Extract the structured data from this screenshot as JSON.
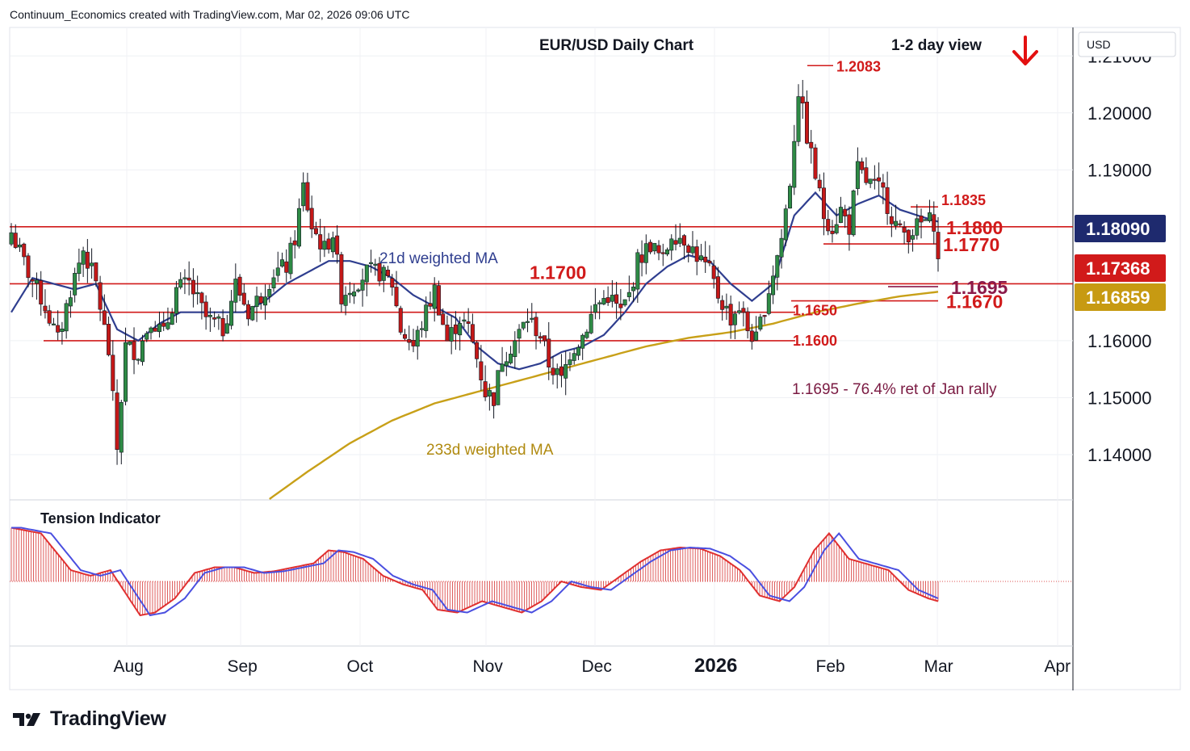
{
  "header": {
    "credit": "Continuum_Economics created with TradingView.com, Mar 02, 2026 09:06 UTC"
  },
  "brand": {
    "name": "TradingView"
  },
  "chart_data": {
    "type": "candlestick",
    "title": "EUR/USD Daily Chart",
    "view_label": "1-2 day view",
    "view_direction": "down",
    "currency": "USD",
    "y_range": [
      1.1322,
      1.215
    ],
    "y_ticks": [
      "1.21000",
      "1.20000",
      "1.19000",
      "1.16000",
      "1.15000",
      "1.14000"
    ],
    "x_ticks": [
      "Aug",
      "Sep",
      "Oct",
      "Nov",
      "Dec",
      "2026",
      "Feb",
      "Mar",
      "Apr"
    ],
    "price_badges": [
      {
        "label": "1.18090",
        "value": 1.1809,
        "color": "#1e2a6e",
        "text_color": "#ffffff"
      },
      {
        "label": "1.17368",
        "value": 1.17368,
        "color": "#d11a1a",
        "text_color": "#ffffff"
      },
      {
        "label": "1.16859",
        "value": 1.16859,
        "color": "#c79a12",
        "text_color": "#ffffff"
      }
    ],
    "levels": [
      {
        "label": "1.2083",
        "value": 1.2083,
        "span": "short",
        "size": "small"
      },
      {
        "label": "1.1835",
        "value": 1.1835,
        "span": "short",
        "size": "small"
      },
      {
        "label": "1.1800",
        "value": 1.18,
        "span": "full",
        "size": "large"
      },
      {
        "label": "1.1770",
        "value": 1.177,
        "span": "short",
        "size": "large"
      },
      {
        "label": "1.1700",
        "value": 1.17,
        "span": "full",
        "size": "large"
      },
      {
        "label": "1.1695",
        "value": 1.1695,
        "span": "short",
        "size": "large",
        "color": "#8b1a4a"
      },
      {
        "label": "1.1670",
        "value": 1.167,
        "span": "short",
        "size": "large"
      },
      {
        "label": "1.1650",
        "value": 1.165,
        "span": "full",
        "size": "small"
      },
      {
        "label": "1.1600",
        "value": 1.16,
        "span": "full",
        "size": "small"
      }
    ],
    "annotations": {
      "ma21": "21d weighted MA",
      "ma233": "233d weighted MA",
      "retracement": "1.1695 - 76.4% ret of Jan rally",
      "indicator": "Tension Indicator"
    },
    "series": [
      {
        "name": "EUR/USD",
        "close_points": [
          [
            0,
            1.179
          ],
          [
            4,
            1.172
          ],
          [
            8,
            1.166
          ],
          [
            11,
            1.16
          ],
          [
            14,
            1.169
          ],
          [
            17,
            1.176
          ],
          [
            20,
            1.17
          ],
          [
            23,
            1.158
          ],
          [
            25,
            1.141
          ],
          [
            27,
            1.159
          ],
          [
            30,
            1.158
          ],
          [
            33,
            1.164
          ],
          [
            36,
            1.161
          ],
          [
            39,
            1.169
          ],
          [
            42,
            1.17
          ],
          [
            46,
            1.164
          ],
          [
            50,
            1.162
          ],
          [
            53,
            1.17
          ],
          [
            56,
            1.165
          ],
          [
            59,
            1.168
          ],
          [
            62,
            1.172
          ],
          [
            65,
            1.173
          ],
          [
            67,
            1.178
          ],
          [
            69,
            1.187
          ],
          [
            71,
            1.18
          ],
          [
            74,
            1.176
          ],
          [
            76,
            1.179
          ],
          [
            78,
            1.168
          ],
          [
            81,
            1.17
          ],
          [
            84,
            1.172
          ],
          [
            87,
            1.172
          ],
          [
            90,
            1.17
          ],
          [
            92,
            1.162
          ],
          [
            95,
            1.159
          ],
          [
            98,
            1.165
          ],
          [
            100,
            1.169
          ],
          [
            103,
            1.16
          ],
          [
            106,
            1.164
          ],
          [
            108,
            1.162
          ],
          [
            110,
            1.157
          ],
          [
            112,
            1.151
          ],
          [
            114,
            1.15
          ],
          [
            116,
            1.157
          ],
          [
            119,
            1.16
          ],
          [
            122,
            1.164
          ],
          [
            125,
            1.161
          ],
          [
            127,
            1.156
          ],
          [
            130,
            1.153
          ],
          [
            132,
            1.158
          ],
          [
            135,
            1.161
          ],
          [
            138,
            1.166
          ],
          [
            141,
            1.168
          ],
          [
            144,
            1.165
          ],
          [
            146,
            1.168
          ],
          [
            148,
            1.174
          ],
          [
            151,
            1.177
          ],
          [
            154,
            1.174
          ],
          [
            156,
            1.179
          ],
          [
            159,
            1.178
          ],
          [
            162,
            1.175
          ],
          [
            165,
            1.172
          ],
          [
            167,
            1.168
          ],
          [
            170,
            1.164
          ],
          [
            172,
            1.166
          ],
          [
            174,
            1.162
          ],
          [
            176,
            1.16
          ],
          [
            178,
            1.166
          ],
          [
            180,
            1.172
          ],
          [
            182,
            1.178
          ],
          [
            184,
            1.188
          ],
          [
            186,
            1.204
          ],
          [
            188,
            1.196
          ],
          [
            190,
            1.189
          ],
          [
            192,
            1.182
          ],
          [
            194,
            1.18
          ],
          [
            196,
            1.183
          ],
          [
            198,
            1.18
          ],
          [
            200,
            1.19
          ],
          [
            202,
            1.188
          ],
          [
            204,
            1.187
          ],
          [
            206,
            1.186
          ],
          [
            208,
            1.182
          ],
          [
            210,
            1.179
          ],
          [
            212,
            1.179
          ],
          [
            214,
            1.18
          ],
          [
            216,
            1.181
          ],
          [
            218,
            1.1809
          ],
          [
            219,
            1.17368
          ]
        ]
      }
    ],
    "ma21_points": [
      [
        0,
        1.165
      ],
      [
        5,
        1.171
      ],
      [
        10,
        1.17
      ],
      [
        15,
        1.169
      ],
      [
        20,
        1.17
      ],
      [
        25,
        1.162
      ],
      [
        30,
        1.16
      ],
      [
        35,
        1.163
      ],
      [
        40,
        1.165
      ],
      [
        45,
        1.165
      ],
      [
        50,
        1.165
      ],
      [
        55,
        1.165
      ],
      [
        60,
        1.167
      ],
      [
        65,
        1.17
      ],
      [
        70,
        1.172
      ],
      [
        75,
        1.174
      ],
      [
        80,
        1.174
      ],
      [
        85,
        1.173
      ],
      [
        90,
        1.171
      ],
      [
        95,
        1.168
      ],
      [
        100,
        1.166
      ],
      [
        105,
        1.164
      ],
      [
        110,
        1.159
      ],
      [
        115,
        1.156
      ],
      [
        120,
        1.155
      ],
      [
        125,
        1.156
      ],
      [
        130,
        1.158
      ],
      [
        135,
        1.159
      ],
      [
        140,
        1.161
      ],
      [
        145,
        1.165
      ],
      [
        150,
        1.17
      ],
      [
        155,
        1.173
      ],
      [
        160,
        1.175
      ],
      [
        165,
        1.174
      ],
      [
        170,
        1.17
      ],
      [
        175,
        1.167
      ],
      [
        180,
        1.17
      ],
      [
        185,
        1.182
      ],
      [
        190,
        1.186
      ],
      [
        195,
        1.182
      ],
      [
        200,
        1.184
      ],
      [
        205,
        1.1855
      ],
      [
        210,
        1.183
      ],
      [
        215,
        1.1818
      ],
      [
        219,
        1.1809
      ]
    ],
    "ma233_points": [
      [
        61,
        1.1322
      ],
      [
        70,
        1.137
      ],
      [
        80,
        1.142
      ],
      [
        90,
        1.146
      ],
      [
        100,
        1.149
      ],
      [
        110,
        1.151
      ],
      [
        120,
        1.153
      ],
      [
        130,
        1.155
      ],
      [
        140,
        1.157
      ],
      [
        150,
        1.159
      ],
      [
        160,
        1.1605
      ],
      [
        170,
        1.1615
      ],
      [
        180,
        1.163
      ],
      [
        190,
        1.165
      ],
      [
        200,
        1.1665
      ],
      [
        210,
        1.1678
      ],
      [
        219,
        1.16859
      ]
    ],
    "tension": {
      "range": [
        -1,
        1
      ],
      "values": [
        [
          0,
          0.95
        ],
        [
          6,
          0.85
        ],
        [
          12,
          0.2
        ],
        [
          16,
          0.1
        ],
        [
          20,
          0.2
        ],
        [
          23,
          -0.2
        ],
        [
          26,
          -0.6
        ],
        [
          29,
          -0.55
        ],
        [
          33,
          -0.3
        ],
        [
          37,
          0.15
        ],
        [
          41,
          0.25
        ],
        [
          45,
          0.25
        ],
        [
          49,
          0.15
        ],
        [
          53,
          0.18
        ],
        [
          57,
          0.25
        ],
        [
          61,
          0.32
        ],
        [
          64,
          0.55
        ],
        [
          67,
          0.52
        ],
        [
          71,
          0.4
        ],
        [
          75,
          0.1
        ],
        [
          79,
          -0.05
        ],
        [
          83,
          -0.15
        ],
        [
          86,
          -0.5
        ],
        [
          90,
          -0.55
        ],
        [
          95,
          -0.35
        ],
        [
          99,
          -0.45
        ],
        [
          103,
          -0.55
        ],
        [
          107,
          -0.35
        ],
        [
          111,
          0.0
        ],
        [
          115,
          -0.1
        ],
        [
          119,
          -0.15
        ],
        [
          123,
          0.1
        ],
        [
          127,
          0.35
        ],
        [
          131,
          0.55
        ],
        [
          135,
          0.6
        ],
        [
          139,
          0.58
        ],
        [
          143,
          0.45
        ],
        [
          147,
          0.2
        ],
        [
          151,
          -0.25
        ],
        [
          155,
          -0.35
        ],
        [
          158,
          -0.1
        ],
        [
          162,
          0.55
        ],
        [
          165,
          0.85
        ],
        [
          169,
          0.4
        ],
        [
          173,
          0.3
        ],
        [
          177,
          0.2
        ],
        [
          181,
          -0.15
        ],
        [
          185,
          -0.3
        ],
        [
          187,
          -0.35
        ]
      ]
    },
    "grid": true,
    "legend": "none"
  }
}
